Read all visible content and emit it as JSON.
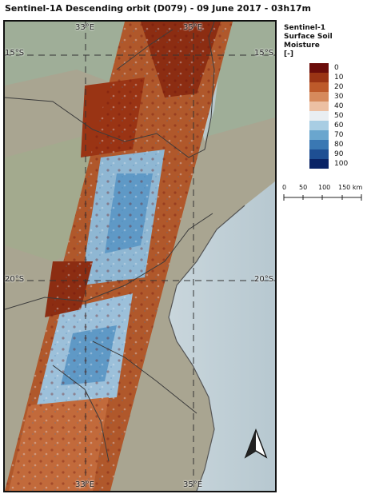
{
  "title": "Sentinel-1A Descending orbit (D079) - 09 June 2017 - 03h17m",
  "legend": {
    "title_line1": "Sentinel-1",
    "title_line2": "Surface Soil Moisture",
    "title_line3": "[-]",
    "items": [
      {
        "label": "0",
        "color": "#6b0d0a"
      },
      {
        "label": "10",
        "color": "#9a3414"
      },
      {
        "label": "20",
        "color": "#bd5a2a"
      },
      {
        "label": "30",
        "color": "#d68a5c"
      },
      {
        "label": "40",
        "color": "#ecc0a3"
      },
      {
        "label": "50",
        "color": "#e9eef2"
      },
      {
        "label": "60",
        "color": "#a8cde3"
      },
      {
        "label": "70",
        "color": "#6aa6ce"
      },
      {
        "label": "80",
        "color": "#3a78b3"
      },
      {
        "label": "90",
        "color": "#1e4f93"
      },
      {
        "label": "100",
        "color": "#0a2466"
      }
    ]
  },
  "scalebar": {
    "labels": [
      "0",
      "50",
      "100",
      "150 km"
    ]
  },
  "grid": {
    "lon_labels": [
      "33°E",
      "35°E"
    ],
    "lat_labels": [
      "15°S",
      "20°S"
    ]
  },
  "north_arrow_icon": "north-arrow-icon"
}
